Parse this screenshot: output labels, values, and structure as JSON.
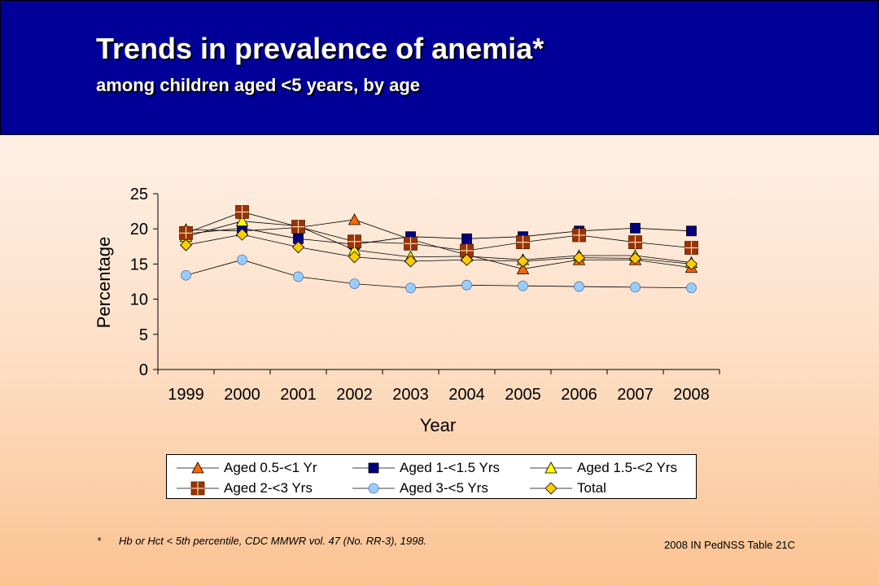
{
  "header": {
    "title": "Trends in prevalence of anemia*",
    "subtitle": "among children aged <5 years, by age"
  },
  "colors": {
    "header_bg": "#000099"
  },
  "chart_data": {
    "type": "line",
    "xlabel": "Year",
    "ylabel": "Percentage",
    "ylim": [
      0,
      25
    ],
    "yticks": [
      0,
      5,
      10,
      15,
      20,
      25
    ],
    "categories": [
      "1999",
      "2000",
      "2001",
      "2002",
      "2003",
      "2004",
      "2005",
      "2006",
      "2007",
      "2008"
    ],
    "grid": false,
    "legend_position": "bottom",
    "series": [
      {
        "name": "Aged 0.5-<1 Yr",
        "marker": "triangle",
        "color": "#ff6600",
        "values": [
          19.9,
          19.7,
          20.2,
          21.3,
          18.5,
          16.3,
          14.3,
          15.6,
          15.6,
          14.5
        ]
      },
      {
        "name": "Aged 1-<1.5 Yrs",
        "marker": "square",
        "color": "#000080",
        "values": [
          19.3,
          20.1,
          18.6,
          17.8,
          18.9,
          18.6,
          18.9,
          19.7,
          20.1,
          19.7
        ]
      },
      {
        "name": "Aged 1.5-<2 Yrs",
        "marker": "triangle",
        "color": "#ffff00",
        "values": [
          18.9,
          21.1,
          20.4,
          17.0,
          16.0,
          16.1,
          15.6,
          16.2,
          16.2,
          15.2
        ]
      },
      {
        "name": "Aged 2-<3 Yrs",
        "marker": "square-cross",
        "color": "#993300",
        "values": [
          19.4,
          22.4,
          20.3,
          18.2,
          17.9,
          16.9,
          18.1,
          19.1,
          18.1,
          17.3
        ]
      },
      {
        "name": "Aged 3-<5 Yrs",
        "marker": "circle",
        "color": "#99ccff",
        "values": [
          13.4,
          15.6,
          13.2,
          12.2,
          11.6,
          12.0,
          11.9,
          11.8,
          11.7,
          11.6
        ]
      },
      {
        "name": "Total",
        "marker": "diamond",
        "color": "#ffcc00",
        "values": [
          17.7,
          19.2,
          17.4,
          16.0,
          15.4,
          15.6,
          15.4,
          15.9,
          15.8,
          15.0
        ]
      }
    ]
  },
  "footnote": {
    "mark": "*",
    "text": "Hb or Hct < 5th percentile, CDC MMWR vol. 47 (No. RR-3), 1998."
  },
  "source": "2008 IN PedNSS Table 21C"
}
